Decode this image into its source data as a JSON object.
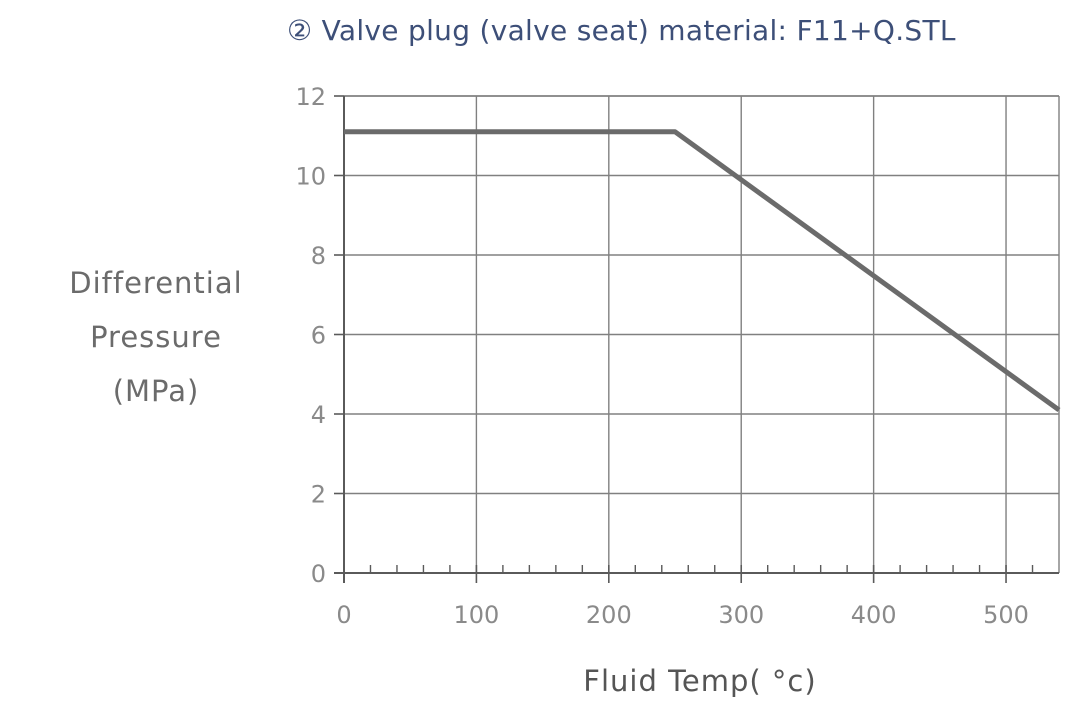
{
  "chart_data": {
    "type": "line",
    "title": "② Valve plug (valve seat) material: F11+Q.STL",
    "xlabel": "Fluid Temp( °c)",
    "ylabel_lines": [
      "Differential",
      "Pressure",
      "(MPa)"
    ],
    "xlim": [
      0,
      540
    ],
    "ylim": [
      0,
      12
    ],
    "xticks": [
      0,
      100,
      200,
      300,
      400,
      500
    ],
    "yticks": [
      0,
      2,
      4,
      6,
      8,
      10,
      12
    ],
    "grid": true,
    "series": [
      {
        "x": [
          0,
          250,
          540
        ],
        "y": [
          11.1,
          11.1,
          4.1
        ]
      }
    ]
  },
  "colors": {
    "title": "#3d4f78",
    "grid": "#808080",
    "axis": "#5a5a5a",
    "line": "#6b6b6b",
    "tick_label": "#8a8a8a"
  }
}
